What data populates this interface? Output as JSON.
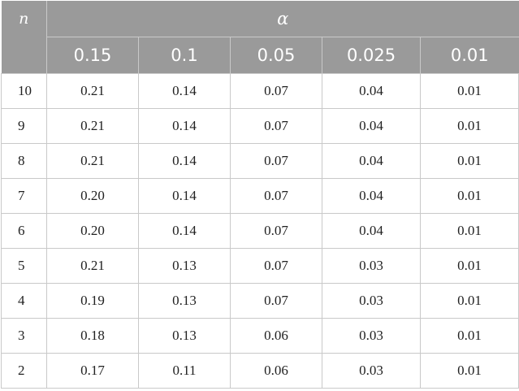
{
  "header": {
    "n_label": "n",
    "alpha_label": "α",
    "alpha_values": [
      "0.15",
      "0.1",
      "0.05",
      "0.025",
      "0.01"
    ]
  },
  "rows": [
    {
      "n": "10",
      "values": [
        "0.21",
        "0.14",
        "0.07",
        "0.04",
        "0.01"
      ]
    },
    {
      "n": "9",
      "values": [
        "0.21",
        "0.14",
        "0.07",
        "0.04",
        "0.01"
      ]
    },
    {
      "n": "8",
      "values": [
        "0.21",
        "0.14",
        "0.07",
        "0.04",
        "0.01"
      ]
    },
    {
      "n": "7",
      "values": [
        "0.20",
        "0.14",
        "0.07",
        "0.04",
        "0.01"
      ]
    },
    {
      "n": "6",
      "values": [
        "0.20",
        "0.14",
        "0.07",
        "0.04",
        "0.01"
      ]
    },
    {
      "n": "5",
      "values": [
        "0.21",
        "0.13",
        "0.07",
        "0.03",
        "0.01"
      ]
    },
    {
      "n": "4",
      "values": [
        "0.19",
        "0.13",
        "0.07",
        "0.03",
        "0.01"
      ]
    },
    {
      "n": "3",
      "values": [
        "0.18",
        "0.13",
        "0.06",
        "0.03",
        "0.01"
      ]
    },
    {
      "n": "2",
      "values": [
        "0.17",
        "0.11",
        "0.06",
        "0.03",
        "0.01"
      ]
    }
  ]
}
